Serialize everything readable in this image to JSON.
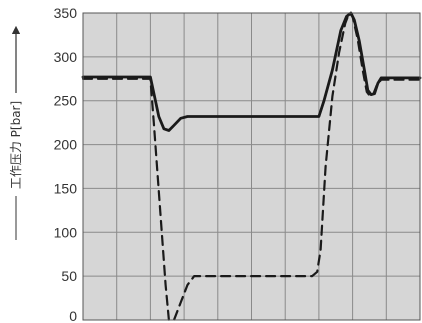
{
  "chart_data": {
    "type": "line",
    "title": "",
    "xlabel": "",
    "ylabel": "工作压力 P[bar]",
    "ylim": [
      0,
      350
    ],
    "xlim": [
      0,
      10
    ],
    "yticks": [
      0,
      50,
      100,
      150,
      200,
      250,
      300,
      350
    ],
    "grid": true,
    "legend": "none",
    "colors": {
      "plot_background": "#d6d6d6",
      "grid": "#8a8a8a",
      "line": "#1a1a1a",
      "frame": "#555555",
      "text": "#333333"
    },
    "series": [
      {
        "style": "solid",
        "points": [
          [
            0,
            277
          ],
          [
            2.0,
            277
          ],
          [
            2.25,
            232
          ],
          [
            2.4,
            218
          ],
          [
            2.55,
            216
          ],
          [
            2.7,
            222
          ],
          [
            2.9,
            230
          ],
          [
            3.1,
            232
          ],
          [
            7.0,
            232
          ],
          [
            7.15,
            250
          ],
          [
            7.4,
            285
          ],
          [
            7.65,
            330
          ],
          [
            7.82,
            346
          ],
          [
            7.95,
            350
          ],
          [
            8.05,
            342
          ],
          [
            8.2,
            318
          ],
          [
            8.35,
            285
          ],
          [
            8.45,
            262
          ],
          [
            8.55,
            257
          ],
          [
            8.65,
            258
          ],
          [
            8.75,
            270
          ],
          [
            8.85,
            276
          ],
          [
            10,
            276
          ]
        ]
      },
      {
        "style": "dashed",
        "points": [
          [
            0,
            275
          ],
          [
            2.0,
            275
          ],
          [
            2.1,
            225
          ],
          [
            2.3,
            120
          ],
          [
            2.45,
            40
          ],
          [
            2.55,
            0
          ],
          [
            2.7,
            0
          ],
          [
            2.9,
            20
          ],
          [
            3.1,
            40
          ],
          [
            3.3,
            50
          ],
          [
            6.8,
            50
          ],
          [
            6.95,
            55
          ],
          [
            7.05,
            80
          ],
          [
            7.2,
            175
          ],
          [
            7.4,
            255
          ],
          [
            7.6,
            305
          ],
          [
            7.78,
            338
          ],
          [
            7.9,
            350
          ],
          [
            8.0,
            346
          ],
          [
            8.15,
            320
          ],
          [
            8.3,
            285
          ],
          [
            8.42,
            260
          ],
          [
            8.52,
            255
          ],
          [
            8.62,
            258
          ],
          [
            8.72,
            268
          ],
          [
            8.85,
            274
          ],
          [
            10,
            274
          ]
        ]
      }
    ]
  }
}
